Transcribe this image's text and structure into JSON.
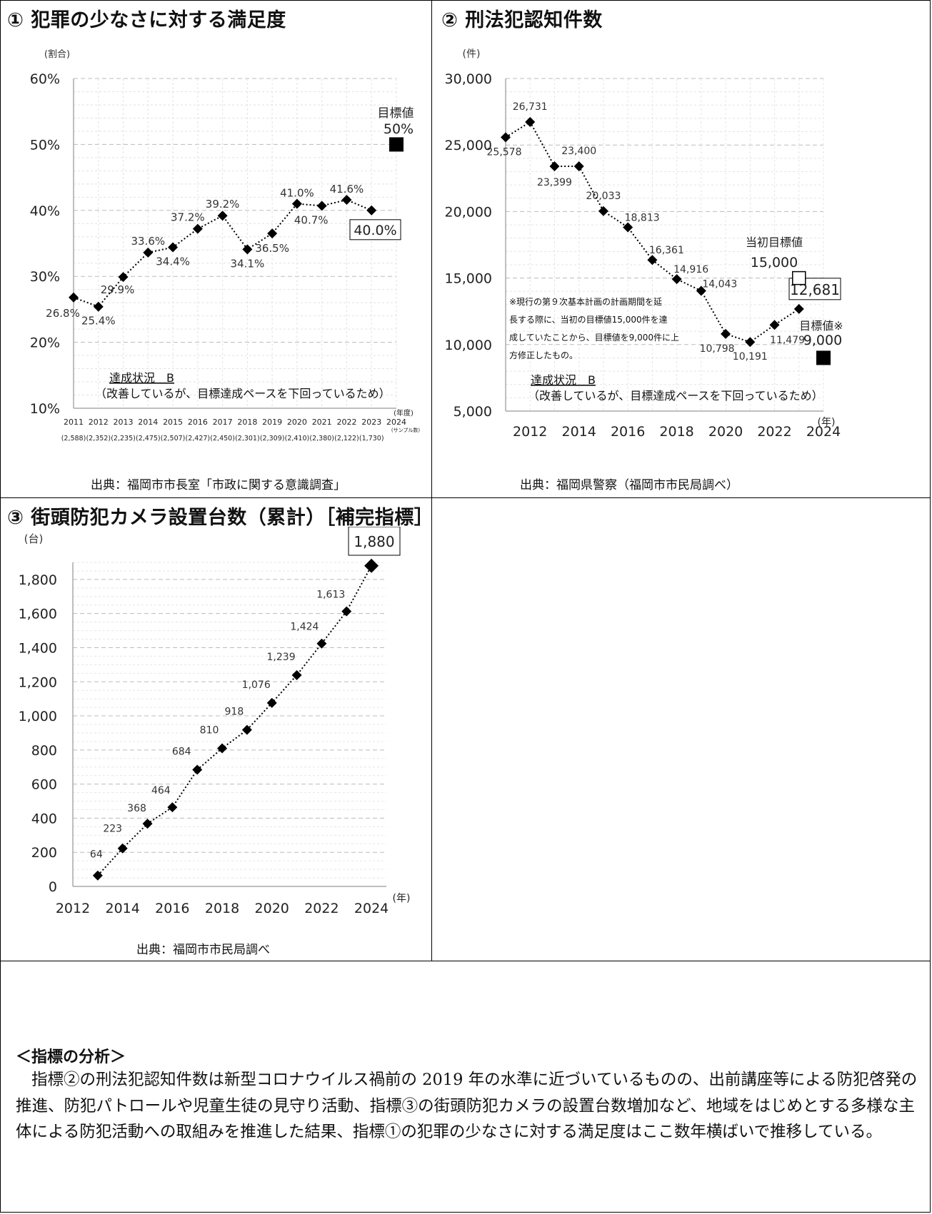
{
  "panels": {
    "p1": {
      "title": "① 犯罪の少なさに対する満足度",
      "source": "出典：福岡市市長室「市政に関する意識調査」"
    },
    "p2": {
      "title": "② 刑法犯認知件数",
      "source": "出典：福岡県警察（福岡市市民局調べ）"
    },
    "p3": {
      "title": "③ 街頭防犯カメラ設置台数（累計）［補完指標］",
      "source": "出典：福岡市市民局調べ"
    }
  },
  "analysis": {
    "heading": "＜指標の分析＞",
    "body": "指標②の刑法犯認知件数は新型コロナウイルス禍前の 2019 年の水準に近づいているものの、出前講座等による防犯啓発の推進、防犯パトロールや児童生徒の見守り活動、指標③の街頭防犯カメラの設置台数増加など、地域をはじめとする多様な主体による防犯活動への取組みを推進した結果、指標①の犯罪の少なさに対する満足度はここ数年横ばいで推移している。"
  },
  "chart_data": [
    {
      "type": "line",
      "ylabel": "(割合)",
      "xlabel": "(年度)",
      "ylim": [
        10,
        60
      ],
      "yticks": [
        "10%",
        "20%",
        "30%",
        "40%",
        "50%",
        "60%"
      ],
      "grid": true,
      "x": [
        2011,
        2012,
        2013,
        2014,
        2015,
        2016,
        2017,
        2018,
        2019,
        2020,
        2021,
        2022,
        2023
      ],
      "values": [
        26.8,
        25.4,
        29.9,
        33.6,
        34.4,
        37.2,
        39.2,
        34.1,
        36.5,
        41.0,
        40.7,
        41.6,
        40.0
      ],
      "data_labels": [
        "26.8%",
        "25.4%",
        "29.9%",
        "33.6%",
        "34.4%",
        "37.2%",
        "39.2%",
        "34.1%",
        "36.5%",
        "41.0%",
        "40.7%",
        "41.6%",
        "40.0%"
      ],
      "xticks": [
        "2011",
        "2012",
        "2013",
        "2014",
        "2015",
        "2016",
        "2017",
        "2018",
        "2019",
        "2020",
        "2021",
        "2022",
        "2023",
        "2024"
      ],
      "sample_sizes": [
        "(2,588)",
        "(2,352)",
        "(2,235)",
        "(2,475)",
        "(2,507)",
        "(2,427)",
        "(2,450)",
        "(2,301)",
        "(2,309)",
        "(2,410)",
        "(2,380)",
        "(2,122)",
        "(1,730)"
      ],
      "sample_label": "(サンプル数)",
      "target": {
        "x": 2024,
        "value": 50,
        "label": "目標値",
        "value_label": "50%"
      },
      "status": {
        "heading": "達成状況　B",
        "note": "（改善しているが、目標達成ペースを下回っているため）"
      }
    },
    {
      "type": "line",
      "ylabel": "(件)",
      "xlabel": "(年)",
      "ylim": [
        5000,
        30000
      ],
      "yticks": [
        "5,000",
        "10,000",
        "15,000",
        "20,000",
        "25,000",
        "30,000"
      ],
      "xticks": [
        "2012",
        "2014",
        "2016",
        "2018",
        "2020",
        "2022",
        "2024"
      ],
      "grid": true,
      "x": [
        2011,
        2012,
        2013,
        2014,
        2015,
        2016,
        2017,
        2018,
        2019,
        2020,
        2021,
        2022,
        2023
      ],
      "values": [
        25578,
        26731,
        23399,
        23400,
        20033,
        18813,
        16361,
        14916,
        14043,
        10798,
        10191,
        11479,
        12681
      ],
      "data_labels": [
        "25,578",
        "26,731",
        "23,399",
        "23,400",
        "20,033",
        "18,813",
        "16,361",
        "14,916",
        "14,043",
        "10,798",
        "10,191",
        "11,479",
        "12,681"
      ],
      "initial_target": {
        "x": 2023,
        "value": 15000,
        "label": "当初目標値",
        "value_label": "15,000"
      },
      "target": {
        "x": 2024,
        "value": 9000,
        "label": "目標値※",
        "value_label": "9,000"
      },
      "note": [
        "※現行の第９次基本計画の計画期間を延",
        "長する際に、当初の目標値15,000件を達",
        "成していたことから、目標値を9,000件に上",
        "方修正したもの。"
      ],
      "status": {
        "heading": "達成状況　B",
        "note": "（改善しているが、目標達成ペースを下回っているため）"
      }
    },
    {
      "type": "line",
      "ylabel": "(台)",
      "xlabel": "(年)",
      "ylim": [
        0,
        1900
      ],
      "yticks": [
        "0",
        "200",
        "400",
        "600",
        "800",
        "1,000",
        "1,200",
        "1,400",
        "1,600",
        "1,800"
      ],
      "xticks": [
        "2012",
        "2014",
        "2016",
        "2018",
        "2020",
        "2022",
        "2024"
      ],
      "grid": true,
      "x": [
        2013,
        2014,
        2015,
        2016,
        2017,
        2018,
        2019,
        2020,
        2021,
        2022,
        2023,
        2024
      ],
      "values": [
        64,
        223,
        368,
        464,
        684,
        810,
        918,
        1076,
        1239,
        1424,
        1613,
        1880
      ],
      "data_labels": [
        "64",
        "223",
        "368",
        "464",
        "684",
        "810",
        "918",
        "1,076",
        "1,239",
        "1,424",
        "1,613",
        "1,880"
      ]
    }
  ]
}
